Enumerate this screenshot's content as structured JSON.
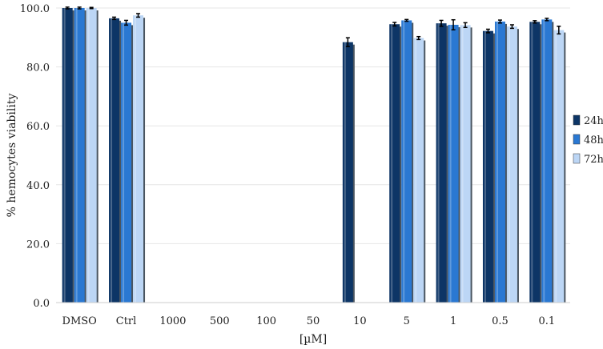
{
  "chart_data": {
    "type": "bar",
    "title": "",
    "xlabel": "[µM]",
    "ylabel": "% hemocytes viability",
    "ylim": [
      0,
      100
    ],
    "yticks": [
      "0.0",
      "20.0",
      "40.0",
      "60.0",
      "80.0",
      "100.0"
    ],
    "grid": true,
    "legend_position": "right",
    "categories": [
      "DMSO",
      "Ctrl",
      "1000",
      "500",
      "100",
      "50",
      "10",
      "5",
      "1",
      "0.5",
      "0.1"
    ],
    "series": [
      {
        "name": "24h",
        "color": "#0d3566",
        "values": [
          100,
          96.5,
          0,
          0,
          0,
          0,
          88.4,
          94.5,
          94.8,
          92.2,
          95.3
        ],
        "errors": [
          0.3,
          0.4,
          0,
          0,
          0,
          0,
          1.5,
          0.6,
          1.0,
          0.6,
          0.4
        ]
      },
      {
        "name": "48h",
        "color": "#2a78d2",
        "values": [
          100,
          95.0,
          0,
          0,
          0,
          0,
          0,
          95.8,
          94.3,
          95.4,
          96.1
        ],
        "errors": [
          0.3,
          0.8,
          0,
          0,
          0,
          0,
          0,
          0.3,
          1.7,
          0.5,
          0.4
        ]
      },
      {
        "name": "72h",
        "color": "#bcd6f5",
        "values": [
          100,
          97.5,
          0,
          0,
          0,
          0,
          0,
          89.8,
          94.2,
          93.7,
          92.5
        ],
        "errors": [
          0.2,
          0.6,
          0,
          0,
          0,
          0,
          0,
          0.5,
          0.8,
          0.6,
          1.3
        ]
      }
    ]
  }
}
